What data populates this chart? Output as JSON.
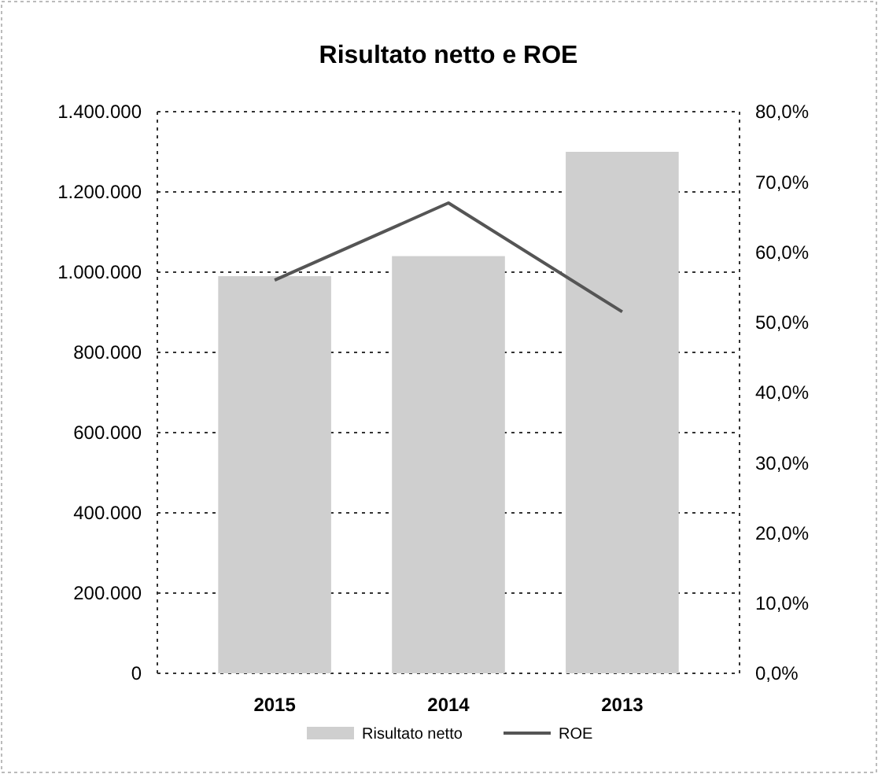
{
  "chart_data": {
    "type": "bar",
    "title": "Risultato netto e ROE",
    "categories": [
      "2015",
      "2014",
      "2013"
    ],
    "series": [
      {
        "name": "Risultato netto",
        "color": "#cfcfcf",
        "values": [
          990000,
          1040000,
          1300000
        ]
      },
      {
        "name": "ROE",
        "type": "line",
        "axis": "y2",
        "color": "#555555",
        "values": [
          56,
          67,
          51.5
        ]
      }
    ],
    "ylim": [
      0,
      1400000
    ],
    "yticks": [
      {
        "value": 0,
        "label": "0"
      },
      {
        "value": 200000,
        "label": "200.000"
      },
      {
        "value": 400000,
        "label": "400.000"
      },
      {
        "value": 600000,
        "label": "600.000"
      },
      {
        "value": 800000,
        "label": "800.000"
      },
      {
        "value": 1000000,
        "label": "1.000.000"
      },
      {
        "value": 1200000,
        "label": "1.200.000"
      },
      {
        "value": 1400000,
        "label": "1.400.000"
      }
    ],
    "y2lim": [
      0,
      80
    ],
    "y2ticks": [
      {
        "value": 0,
        "label": "0,0%"
      },
      {
        "value": 10,
        "label": "10,0%"
      },
      {
        "value": 20,
        "label": "20,0%"
      },
      {
        "value": 30,
        "label": "30,0%"
      },
      {
        "value": 40,
        "label": "40,0%"
      },
      {
        "value": 50,
        "label": "50,0%"
      },
      {
        "value": 60,
        "label": "60,0%"
      },
      {
        "value": 70,
        "label": "70,0%"
      },
      {
        "value": 80,
        "label": "80,0%"
      }
    ],
    "grid": "y",
    "legend": "bottom",
    "line_style": "solid",
    "marker": "none"
  }
}
